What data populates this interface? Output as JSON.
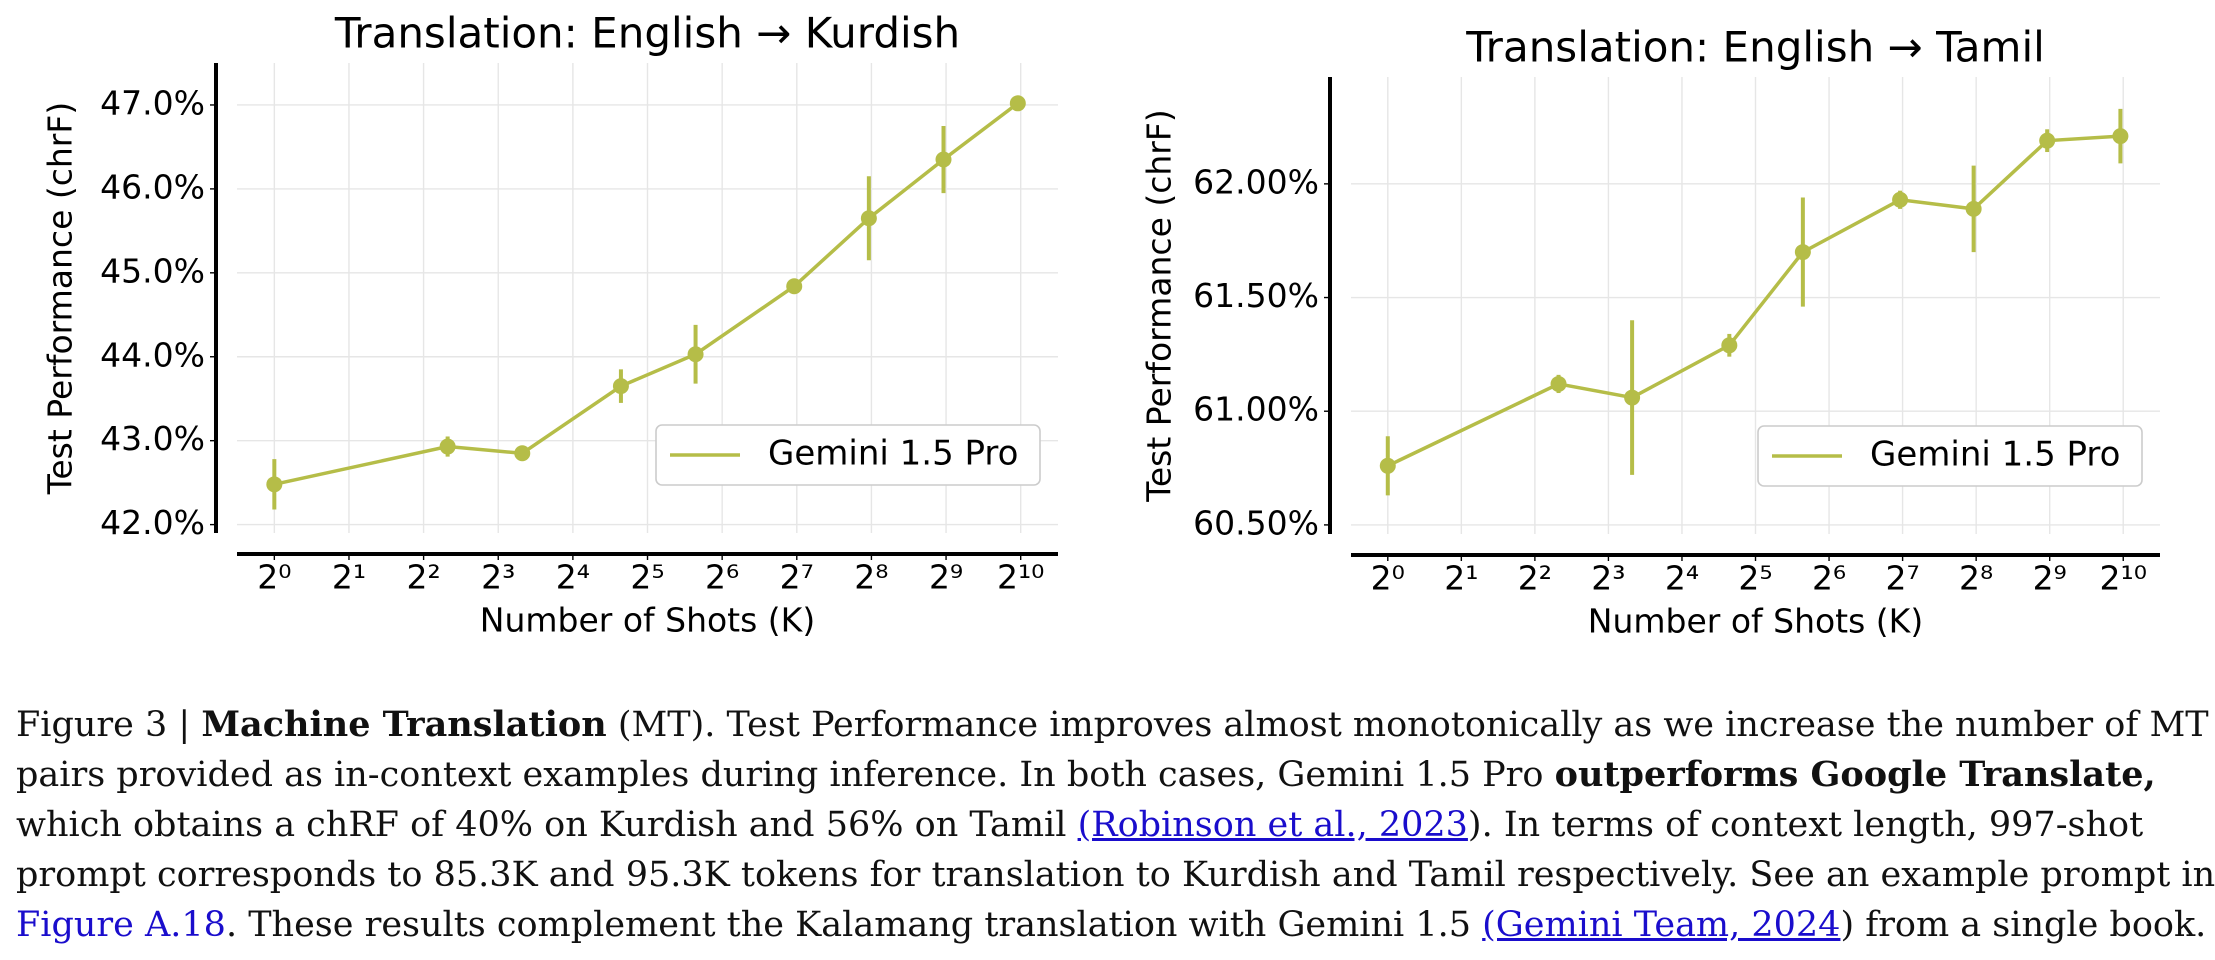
{
  "chart_data": [
    {
      "type": "line",
      "title": "Translation: English → Kurdish",
      "x_label": "Number of Shots (K)",
      "y_label": "Test Performance (chrF)",
      "x": [
        1,
        5,
        10,
        25,
        50,
        125,
        250,
        500,
        997
      ],
      "x_scale": "log2",
      "series": [
        {
          "name": "Gemini 1.5 Pro",
          "color": "#b5bd48",
          "values": [
            42.48,
            42.93,
            42.85,
            43.65,
            44.03,
            44.84,
            45.65,
            46.35,
            47.02
          ],
          "errors": [
            0.3,
            0.12,
            0.03,
            0.2,
            0.35,
            0.05,
            0.5,
            0.4,
            0.08
          ]
        }
      ],
      "xlim": [
        0.707,
        1448
      ],
      "ylim": [
        41.9,
        47.5
      ],
      "xticks": [
        {
          "value": 1,
          "label": "2⁰"
        },
        {
          "value": 2,
          "label": "2¹"
        },
        {
          "value": 4,
          "label": "2²"
        },
        {
          "value": 8,
          "label": "2³"
        },
        {
          "value": 16,
          "label": "2⁴"
        },
        {
          "value": 32,
          "label": "2⁵"
        },
        {
          "value": 64,
          "label": "2⁶"
        },
        {
          "value": 128,
          "label": "2⁷"
        },
        {
          "value": 256,
          "label": "2⁸"
        },
        {
          "value": 512,
          "label": "2⁹"
        },
        {
          "value": 1024,
          "label": "2¹⁰"
        }
      ],
      "yticks": [
        {
          "value": 42,
          "label": "42.0%"
        },
        {
          "value": 43,
          "label": "43.0%"
        },
        {
          "value": 44,
          "label": "44.0%"
        },
        {
          "value": 45,
          "label": "45.0%"
        },
        {
          "value": 46,
          "label": "46.0%"
        },
        {
          "value": 47,
          "label": "47.0%"
        }
      ],
      "grid": true,
      "legend": "lower right"
    },
    {
      "type": "line",
      "title": "Translation: English → Tamil",
      "x_label": "Number of Shots (K)",
      "y_label": "Test Performance (chrF)",
      "x": [
        1,
        5,
        10,
        25,
        50,
        125,
        250,
        500,
        997
      ],
      "x_scale": "log2",
      "series": [
        {
          "name": "Gemini 1.5 Pro",
          "color": "#b5bd48",
          "values": [
            60.76,
            61.12,
            61.06,
            61.29,
            61.7,
            61.93,
            61.89,
            62.19,
            62.21
          ],
          "errors": [
            0.13,
            0.04,
            0.34,
            0.05,
            0.24,
            0.04,
            0.19,
            0.05,
            0.12
          ]
        }
      ],
      "xlim": [
        0.707,
        1448
      ],
      "ylim": [
        60.46,
        62.47
      ],
      "xticks": [
        {
          "value": 1,
          "label": "2⁰"
        },
        {
          "value": 2,
          "label": "2¹"
        },
        {
          "value": 4,
          "label": "2²"
        },
        {
          "value": 8,
          "label": "2³"
        },
        {
          "value": 16,
          "label": "2⁴"
        },
        {
          "value": 32,
          "label": "2⁵"
        },
        {
          "value": 64,
          "label": "2⁶"
        },
        {
          "value": 128,
          "label": "2⁷"
        },
        {
          "value": 256,
          "label": "2⁸"
        },
        {
          "value": 512,
          "label": "2⁹"
        },
        {
          "value": 1024,
          "label": "2¹⁰"
        }
      ],
      "yticks": [
        {
          "value": 60.5,
          "label": "60.50%"
        },
        {
          "value": 61,
          "label": "61.00%"
        },
        {
          "value": 61.5,
          "label": "61.50%"
        },
        {
          "value": 62,
          "label": "62.00%"
        }
      ],
      "grid": true,
      "legend": "lower right"
    }
  ],
  "caption": {
    "lines": [
      [
        {
          "text": "Figure 3 | ",
          "style": "normal"
        },
        {
          "text": "Machine Translation",
          "style": "bold"
        },
        {
          "text": " (MT). Test Performance improves almost monotonically as we increase the number of MT",
          "style": "normal"
        }
      ],
      [
        {
          "text": "pairs provided as in-context examples during inference. In both cases, Gemini 1.5 Pro ",
          "style": "normal"
        },
        {
          "text": "outperforms Google Translate,",
          "style": "bold"
        }
      ],
      [
        {
          "text": "which obtains a chRF of 40% on Kurdish and 56% on Tamil ",
          "style": "normal"
        },
        {
          "text": "(Robinson et al., 2023",
          "style": "citation"
        },
        {
          "text": "). In terms of context length, 997-shot",
          "style": "normal"
        }
      ],
      [
        {
          "text": "prompt corresponds to 85.3K and 95.3K tokens for translation to Kurdish and Tamil respectively. See an example prompt in",
          "style": "normal"
        }
      ],
      [
        {
          "text": "Figure A.18",
          "style": "link"
        },
        {
          "text": ". These results complement the Kalamang translation with Gemini 1.5 ",
          "style": "normal"
        },
        {
          "text": "(Gemini Team, 2024",
          "style": "citation"
        },
        {
          "text": ") from a single book.",
          "style": "normal"
        }
      ]
    ]
  }
}
